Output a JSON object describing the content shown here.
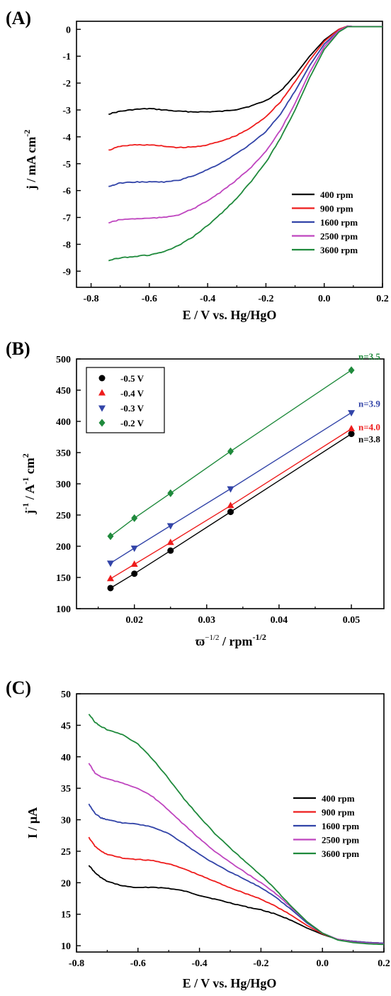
{
  "colors": {
    "black": "#000000",
    "red": "#ee1c1c",
    "blue": "#3244a8",
    "magenta": "#bf45bf",
    "green": "#1f8a3c"
  },
  "panels": {
    "A": {
      "letter": "(A)",
      "xlabel": "E / V vs. Hg/HgO",
      "ylabel": "j / mA cm",
      "ylabel_sup": "-2",
      "xticks": [
        "-0.8",
        "-0.6",
        "-0.4",
        "-0.2",
        "0.0",
        "0.2"
      ],
      "yticks": [
        "0",
        "-1",
        "-2",
        "-3",
        "-4",
        "-5",
        "-6",
        "-7",
        "-8",
        "-9"
      ]
    },
    "B": {
      "letter": "(B)",
      "xlabel_sym": "ϖ",
      "xlabel_sup1": "−1/2",
      "xlabel_mid": " / rpm",
      "xlabel_sup2": "-1/2",
      "ylabel_j": "j",
      "ylabel_sup1": "-1",
      "ylabel_mid": " / A",
      "ylabel_sup2": "-1",
      "ylabel_end": " cm",
      "ylabel_sup3": "2",
      "xticks": [
        "0.02",
        "0.03",
        "0.04",
        "0.05"
      ],
      "yticks": [
        "100",
        "150",
        "200",
        "250",
        "300",
        "350",
        "400",
        "450",
        "500"
      ]
    },
    "C": {
      "letter": "(C)",
      "xlabel": "E / V vs. Hg/HgO",
      "ylabel": "I / μA",
      "xticks": [
        "-0.8",
        "-0.6",
        "-0.4",
        "-0.2",
        "0.0",
        "0.2"
      ],
      "yticks": [
        "10",
        "15",
        "20",
        "25",
        "30",
        "35",
        "40",
        "45",
        "50"
      ]
    }
  },
  "chart_data": [
    {
      "panel": "A",
      "type": "line",
      "xlabel": "E / V vs. Hg/HgO",
      "ylabel": "j / mA cm-2",
      "xlim": [
        -0.85,
        0.2
      ],
      "ylim": [
        -9.6,
        0.3
      ],
      "legend_position": "bottom-right",
      "series": [
        {
          "name": "400 rpm",
          "color": "#000000",
          "x": [
            -0.74,
            -0.7,
            -0.65,
            -0.6,
            -0.55,
            -0.5,
            -0.45,
            -0.4,
            -0.35,
            -0.3,
            -0.25,
            -0.2,
            -0.15,
            -0.1,
            -0.05,
            0.0,
            0.05,
            0.08,
            0.1,
            0.15,
            0.2
          ],
          "y": [
            -3.15,
            -3.05,
            -2.98,
            -2.95,
            -3.0,
            -3.05,
            -3.07,
            -3.07,
            -3.05,
            -2.98,
            -2.85,
            -2.65,
            -2.3,
            -1.7,
            -1.0,
            -0.4,
            0.0,
            0.12,
            0.1,
            0.1,
            0.1
          ]
        },
        {
          "name": "900 rpm",
          "color": "#ee1c1c",
          "x": [
            -0.74,
            -0.7,
            -0.65,
            -0.6,
            -0.55,
            -0.5,
            -0.45,
            -0.4,
            -0.35,
            -0.3,
            -0.25,
            -0.2,
            -0.15,
            -0.1,
            -0.05,
            0.0,
            0.05,
            0.08,
            0.1,
            0.15,
            0.2
          ],
          "y": [
            -4.5,
            -4.35,
            -4.3,
            -4.3,
            -4.35,
            -4.4,
            -4.38,
            -4.3,
            -4.15,
            -3.95,
            -3.65,
            -3.25,
            -2.7,
            -1.95,
            -1.15,
            -0.45,
            0.0,
            0.12,
            0.1,
            0.1,
            0.1
          ]
        },
        {
          "name": "1600 rpm",
          "color": "#3244a8",
          "x": [
            -0.74,
            -0.7,
            -0.65,
            -0.6,
            -0.55,
            -0.5,
            -0.45,
            -0.4,
            -0.35,
            -0.3,
            -0.25,
            -0.2,
            -0.15,
            -0.1,
            -0.05,
            0.0,
            0.05,
            0.08,
            0.1,
            0.15,
            0.2
          ],
          "y": [
            -5.85,
            -5.72,
            -5.68,
            -5.68,
            -5.68,
            -5.62,
            -5.45,
            -5.22,
            -4.95,
            -4.62,
            -4.25,
            -3.8,
            -3.15,
            -2.3,
            -1.35,
            -0.55,
            -0.05,
            0.12,
            0.1,
            0.1,
            0.1
          ]
        },
        {
          "name": "2500 rpm",
          "color": "#bf45bf",
          "x": [
            -0.74,
            -0.7,
            -0.65,
            -0.6,
            -0.55,
            -0.5,
            -0.45,
            -0.4,
            -0.35,
            -0.3,
            -0.25,
            -0.2,
            -0.15,
            -0.1,
            -0.05,
            0.0,
            0.05,
            0.08,
            0.1,
            0.15,
            0.2
          ],
          "y": [
            -7.2,
            -7.08,
            -7.05,
            -7.03,
            -7.0,
            -6.9,
            -6.68,
            -6.38,
            -6.02,
            -5.6,
            -5.12,
            -4.55,
            -3.75,
            -2.75,
            -1.6,
            -0.65,
            -0.05,
            0.12,
            0.1,
            0.1,
            0.1
          ]
        },
        {
          "name": "3600 rpm",
          "color": "#1f8a3c",
          "x": [
            -0.74,
            -0.7,
            -0.65,
            -0.6,
            -0.55,
            -0.5,
            -0.45,
            -0.4,
            -0.35,
            -0.3,
            -0.25,
            -0.2,
            -0.15,
            -0.1,
            -0.05,
            0.0,
            0.05,
            0.08,
            0.1,
            0.15,
            0.2
          ],
          "y": [
            -8.6,
            -8.5,
            -8.45,
            -8.4,
            -8.28,
            -8.05,
            -7.72,
            -7.3,
            -6.82,
            -6.28,
            -5.65,
            -4.95,
            -4.05,
            -3.0,
            -1.8,
            -0.75,
            -0.1,
            0.1,
            0.1,
            0.1,
            0.1
          ]
        }
      ]
    },
    {
      "panel": "B",
      "type": "scatter",
      "xlim": [
        0.012,
        0.0545
      ],
      "ylim": [
        100,
        500
      ],
      "legend_position": "top-left",
      "x": [
        0.0167,
        0.02,
        0.025,
        0.0333,
        0.05
      ],
      "series": [
        {
          "name": "-0.5 V",
          "color": "#000000",
          "marker": "circle",
          "values": [
            133,
            156,
            193,
            255,
            380
          ],
          "annotation": "n=3.8"
        },
        {
          "name": "-0.4 V",
          "color": "#ee1c1c",
          "marker": "triangle-up",
          "values": [
            148,
            171,
            206,
            265,
            388
          ],
          "annotation": "n=4.0"
        },
        {
          "name": "-0.3 V",
          "color": "#3244a8",
          "marker": "triangle-down",
          "values": [
            173,
            197,
            233,
            292,
            414
          ],
          "annotation": "n=3.9"
        },
        {
          "name": "-0.2 V",
          "color": "#1f8a3c",
          "marker": "diamond",
          "values": [
            216,
            245,
            285,
            352,
            482
          ],
          "annotation": "n=3.5"
        }
      ]
    },
    {
      "panel": "C",
      "type": "line",
      "xlabel": "E / V vs. Hg/HgO",
      "ylabel": "I / μA",
      "xlim": [
        -0.8,
        0.2
      ],
      "ylim": [
        9,
        50
      ],
      "legend_position": "right",
      "series": [
        {
          "name": "400 rpm",
          "color": "#000000",
          "x": [
            -0.76,
            -0.74,
            -0.72,
            -0.7,
            -0.65,
            -0.6,
            -0.55,
            -0.5,
            -0.45,
            -0.4,
            -0.35,
            -0.3,
            -0.25,
            -0.2,
            -0.15,
            -0.1,
            -0.05,
            0.0,
            0.05,
            0.1,
            0.15,
            0.2
          ],
          "y": [
            22.8,
            21.6,
            20.8,
            20.2,
            19.5,
            19.2,
            19.3,
            19.1,
            18.7,
            18.0,
            17.4,
            16.8,
            16.2,
            15.7,
            15.0,
            14.0,
            12.8,
            11.8,
            11.0,
            10.7,
            10.5,
            10.4
          ]
        },
        {
          "name": "900 rpm",
          "color": "#ee1c1c",
          "x": [
            -0.76,
            -0.74,
            -0.72,
            -0.7,
            -0.65,
            -0.6,
            -0.55,
            -0.5,
            -0.45,
            -0.4,
            -0.35,
            -0.3,
            -0.25,
            -0.2,
            -0.15,
            -0.1,
            -0.05,
            0.0,
            0.05,
            0.1,
            0.15,
            0.2
          ],
          "y": [
            27.2,
            25.8,
            25.0,
            24.5,
            23.9,
            23.7,
            23.5,
            23.0,
            22.2,
            21.2,
            20.2,
            19.2,
            18.3,
            17.4,
            16.2,
            14.8,
            13.2,
            11.9,
            11.0,
            10.7,
            10.5,
            10.4
          ]
        },
        {
          "name": "1600 rpm",
          "color": "#3244a8",
          "x": [
            -0.76,
            -0.74,
            -0.72,
            -0.7,
            -0.65,
            -0.6,
            -0.55,
            -0.5,
            -0.45,
            -0.4,
            -0.35,
            -0.3,
            -0.25,
            -0.2,
            -0.15,
            -0.1,
            -0.05,
            0.0,
            0.05,
            0.1,
            0.15,
            0.2
          ],
          "y": [
            32.5,
            31.0,
            30.3,
            30.0,
            29.5,
            29.3,
            28.8,
            27.8,
            26.2,
            24.5,
            23.0,
            21.7,
            20.5,
            19.2,
            17.6,
            15.7,
            13.6,
            12.0,
            11.0,
            10.7,
            10.5,
            10.4
          ]
        },
        {
          "name": "2500 rpm",
          "color": "#bf45bf",
          "x": [
            -0.76,
            -0.74,
            -0.72,
            -0.7,
            -0.65,
            -0.6,
            -0.55,
            -0.5,
            -0.45,
            -0.4,
            -0.35,
            -0.3,
            -0.25,
            -0.2,
            -0.15,
            -0.1,
            -0.05,
            0.0,
            0.05,
            0.1,
            0.15,
            0.2
          ],
          "y": [
            39.0,
            37.4,
            36.8,
            36.5,
            35.8,
            35.0,
            33.6,
            31.5,
            29.2,
            27.0,
            25.0,
            23.2,
            21.6,
            20.0,
            18.2,
            16.0,
            13.8,
            12.0,
            11.0,
            10.6,
            10.4,
            10.3
          ]
        },
        {
          "name": "3600 rpm",
          "color": "#1f8a3c",
          "x": [
            -0.76,
            -0.74,
            -0.72,
            -0.7,
            -0.65,
            -0.6,
            -0.55,
            -0.5,
            -0.45,
            -0.4,
            -0.35,
            -0.3,
            -0.25,
            -0.2,
            -0.15,
            -0.1,
            -0.05,
            0.0,
            0.05,
            0.1,
            0.15,
            0.2
          ],
          "y": [
            46.8,
            45.5,
            44.8,
            44.3,
            43.5,
            42.0,
            39.5,
            36.5,
            33.3,
            30.5,
            27.8,
            25.5,
            23.3,
            21.2,
            18.8,
            16.2,
            13.8,
            12.0,
            10.9,
            10.5,
            10.3,
            10.2
          ]
        }
      ]
    }
  ]
}
